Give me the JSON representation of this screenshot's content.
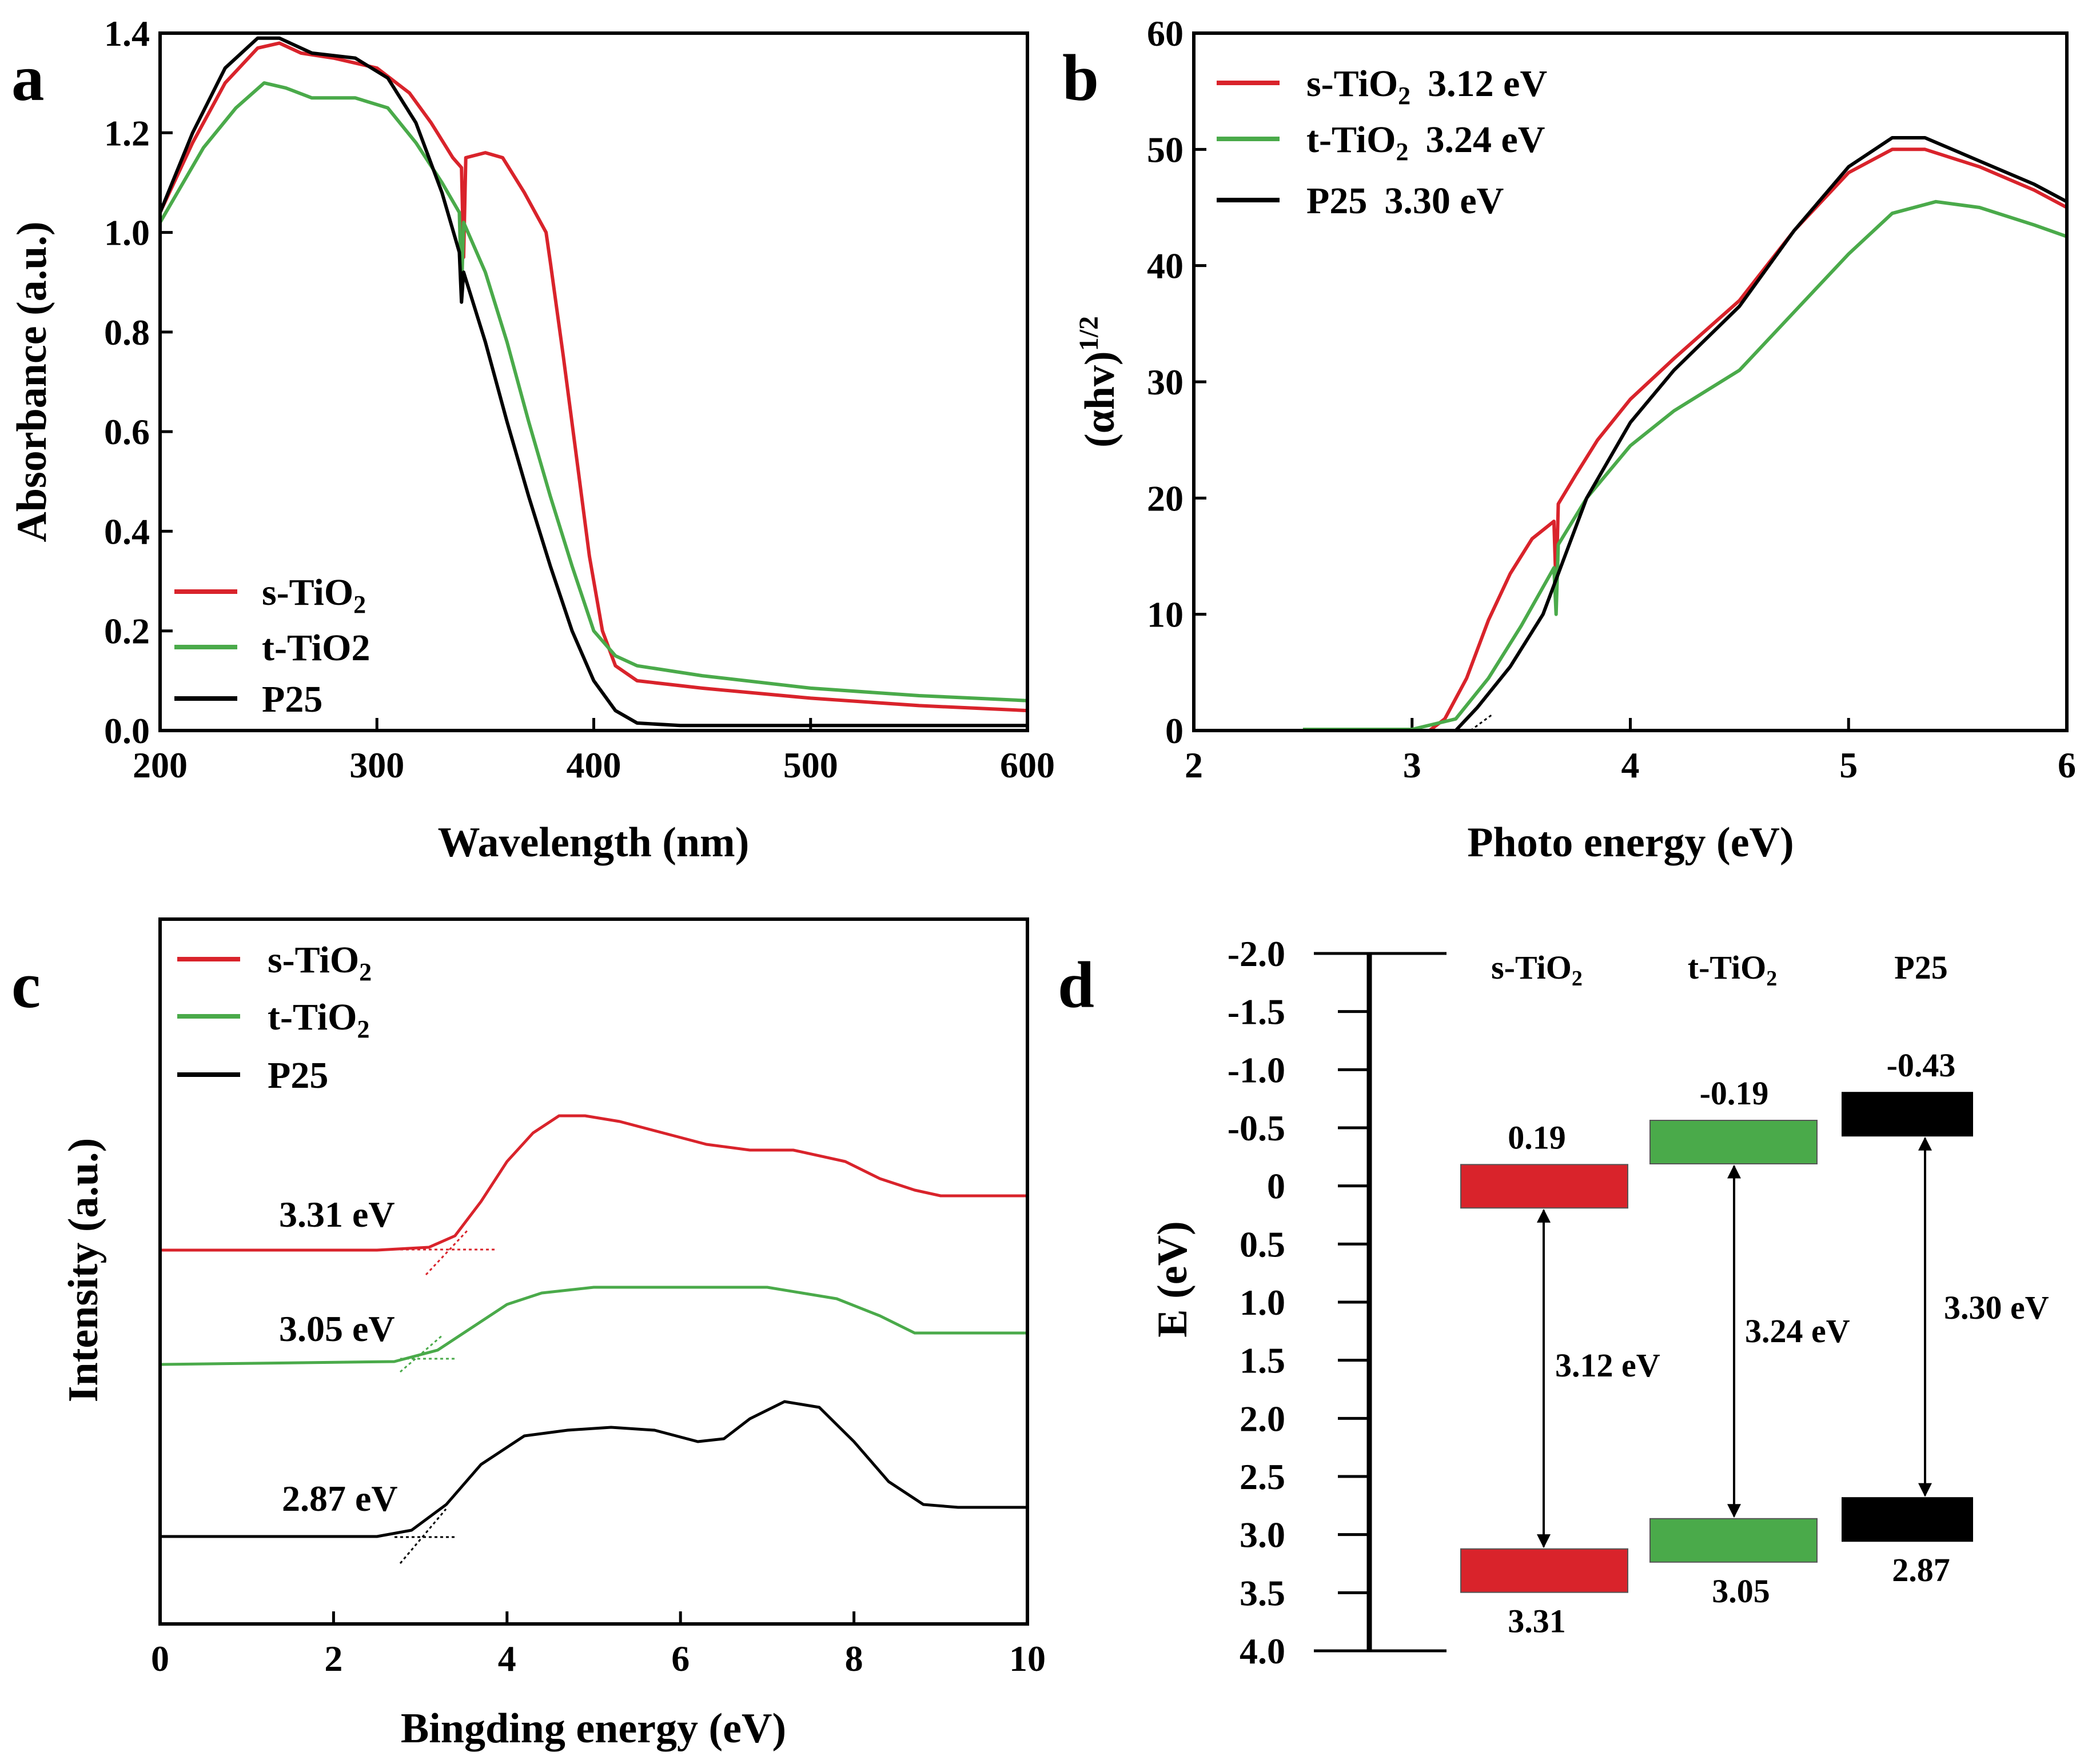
{
  "figure": {
    "colors": {
      "s": "#d9232b",
      "t": "#4aaa4a",
      "p25": "#000000"
    }
  },
  "chart_data": [
    {
      "id": "a",
      "panel_letter": "a",
      "type": "line",
      "xlabel": "Wavelength (nm)",
      "ylabel": "Absorbance (a.u.)",
      "xlim": [
        200,
        600
      ],
      "ylim": [
        0,
        1.4
      ],
      "xticks": [
        "200",
        "300",
        "400",
        "500",
        "600"
      ],
      "yticks": [
        "0.0",
        "0.2",
        "0.4",
        "0.6",
        "0.8",
        "1.0",
        "1.2",
        "1.4"
      ],
      "legend_position": "lower-left",
      "series": [
        {
          "name": "s-TiO",
          "sub": "2",
          "color": "#d9232b",
          "points": [
            [
              200,
              1.04
            ],
            [
              215,
              1.18
            ],
            [
              230,
              1.3
            ],
            [
              245,
              1.37
            ],
            [
              255,
              1.38
            ],
            [
              265,
              1.36
            ],
            [
              280,
              1.35
            ],
            [
              300,
              1.33
            ],
            [
              315,
              1.28
            ],
            [
              325,
              1.22
            ],
            [
              335,
              1.15
            ],
            [
              339,
              1.13
            ],
            [
              340,
              0.95
            ],
            [
              341,
              1.15
            ],
            [
              350,
              1.16
            ],
            [
              358,
              1.15
            ],
            [
              368,
              1.08
            ],
            [
              378,
              1.0
            ],
            [
              380,
              0.94
            ],
            [
              386,
              0.75
            ],
            [
              392,
              0.55
            ],
            [
              398,
              0.35
            ],
            [
              404,
              0.2
            ],
            [
              410,
              0.13
            ],
            [
              420,
              0.1
            ],
            [
              450,
              0.085
            ],
            [
              500,
              0.065
            ],
            [
              550,
              0.05
            ],
            [
              600,
              0.04
            ]
          ]
        },
        {
          "name": "t-TiO2",
          "sub": "",
          "color": "#4aaa4a",
          "points": [
            [
              200,
              1.02
            ],
            [
              220,
              1.17
            ],
            [
              235,
              1.25
            ],
            [
              248,
              1.3
            ],
            [
              258,
              1.29
            ],
            [
              270,
              1.27
            ],
            [
              290,
              1.27
            ],
            [
              305,
              1.25
            ],
            [
              318,
              1.18
            ],
            [
              330,
              1.1
            ],
            [
              338,
              1.04
            ],
            [
              339,
              0.88
            ],
            [
              340,
              1.02
            ],
            [
              350,
              0.92
            ],
            [
              360,
              0.78
            ],
            [
              370,
              0.62
            ],
            [
              380,
              0.47
            ],
            [
              390,
              0.33
            ],
            [
              400,
              0.2
            ],
            [
              410,
              0.15
            ],
            [
              420,
              0.13
            ],
            [
              450,
              0.11
            ],
            [
              500,
              0.085
            ],
            [
              550,
              0.07
            ],
            [
              600,
              0.06
            ]
          ]
        },
        {
          "name": "P25",
          "sub": "",
          "color": "#000000",
          "points": [
            [
              200,
              1.04
            ],
            [
              215,
              1.2
            ],
            [
              230,
              1.33
            ],
            [
              245,
              1.39
            ],
            [
              255,
              1.39
            ],
            [
              270,
              1.36
            ],
            [
              290,
              1.35
            ],
            [
              305,
              1.31
            ],
            [
              318,
              1.22
            ],
            [
              330,
              1.08
            ],
            [
              338,
              0.96
            ],
            [
              339,
              0.86
            ],
            [
              340,
              0.92
            ],
            [
              350,
              0.78
            ],
            [
              360,
              0.62
            ],
            [
              370,
              0.47
            ],
            [
              380,
              0.33
            ],
            [
              390,
              0.2
            ],
            [
              400,
              0.1
            ],
            [
              410,
              0.04
            ],
            [
              420,
              0.015
            ],
            [
              440,
              0.01
            ],
            [
              500,
              0.01
            ],
            [
              600,
              0.01
            ]
          ]
        }
      ]
    },
    {
      "id": "b",
      "panel_letter": "b",
      "type": "line",
      "xlabel": "Photo energy (eV)",
      "ylabel": "(αhv)",
      "ylabel_sup": "1/2",
      "xlim": [
        2,
        6
      ],
      "ylim": [
        0,
        60
      ],
      "xticks": [
        "2",
        "3",
        "4",
        "5",
        "6"
      ],
      "yticks": [
        "0",
        "10",
        "20",
        "30",
        "40",
        "50",
        "60"
      ],
      "legend_position": "top-left",
      "series": [
        {
          "name": "s-TiO",
          "sub": "2",
          "gap": "3.12 eV",
          "color": "#d9232b",
          "points": [
            [
              3.08,
              0
            ],
            [
              3.15,
              1.0
            ],
            [
              3.25,
              4.5
            ],
            [
              3.35,
              9.5
            ],
            [
              3.45,
              13.5
            ],
            [
              3.55,
              16.5
            ],
            [
              3.65,
              18
            ],
            [
              3.66,
              12
            ],
            [
              3.67,
              19.5
            ],
            [
              3.75,
              22
            ],
            [
              3.85,
              25
            ],
            [
              4.0,
              28.5
            ],
            [
              4.2,
              32
            ],
            [
              4.5,
              37
            ],
            [
              4.75,
              43
            ],
            [
              5.0,
              48
            ],
            [
              5.2,
              50
            ],
            [
              5.35,
              50
            ],
            [
              5.6,
              48.5
            ],
            [
              5.85,
              46.5
            ],
            [
              6.0,
              45
            ]
          ]
        },
        {
          "name": "t-TiO",
          "sub": "2",
          "gap": "3.24 eV",
          "color": "#4aaa4a",
          "points": [
            [
              2.5,
              0.1
            ],
            [
              3.0,
              0.1
            ],
            [
              3.2,
              1.0
            ],
            [
              3.35,
              4.5
            ],
            [
              3.5,
              9
            ],
            [
              3.65,
              14
            ],
            [
              3.66,
              10
            ],
            [
              3.67,
              16
            ],
            [
              3.8,
              20
            ],
            [
              4.0,
              24.5
            ],
            [
              4.2,
              27.5
            ],
            [
              4.5,
              31
            ],
            [
              4.75,
              36
            ],
            [
              5.0,
              41
            ],
            [
              5.2,
              44.5
            ],
            [
              5.4,
              45.5
            ],
            [
              5.6,
              45
            ],
            [
              5.85,
              43.5
            ],
            [
              6.0,
              42.5
            ]
          ]
        },
        {
          "name": "P25",
          "sub": "",
          "gap": "3.30 eV",
          "color": "#000000",
          "points": [
            [
              3.2,
              0
            ],
            [
              3.3,
              2
            ],
            [
              3.45,
              5.5
            ],
            [
              3.6,
              10
            ],
            [
              3.7,
              15
            ],
            [
              3.8,
              20
            ],
            [
              4.0,
              26.5
            ],
            [
              4.2,
              31
            ],
            [
              4.5,
              36.5
            ],
            [
              4.75,
              43
            ],
            [
              5.0,
              48.5
            ],
            [
              5.2,
              51
            ],
            [
              5.35,
              51
            ],
            [
              5.6,
              49
            ],
            [
              5.85,
              47
            ],
            [
              6.0,
              45.5
            ]
          ]
        }
      ]
    },
    {
      "id": "c",
      "panel_letter": "c",
      "type": "line",
      "xlabel": "Bingding energy (eV)",
      "ylabel": "Intensity (a.u.)",
      "xlim": [
        0,
        10
      ],
      "ylim": [
        0,
        1
      ],
      "xticks": [
        "0",
        "2",
        "4",
        "6",
        "8",
        "10"
      ],
      "legend_position": "top-left",
      "series": [
        {
          "name": "s-TiO",
          "sub": "2",
          "edge": "3.31 eV",
          "color": "#d9232b",
          "points": [
            [
              0,
              0.535
            ],
            [
              2.5,
              0.535
            ],
            [
              3.1,
              0.54
            ],
            [
              3.4,
              0.56
            ],
            [
              3.7,
              0.62
            ],
            [
              4.0,
              0.69
            ],
            [
              4.3,
              0.74
            ],
            [
              4.6,
              0.77
            ],
            [
              4.9,
              0.77
            ],
            [
              5.3,
              0.76
            ],
            [
              5.8,
              0.74
            ],
            [
              6.3,
              0.72
            ],
            [
              6.8,
              0.71
            ],
            [
              7.3,
              0.71
            ],
            [
              7.9,
              0.69
            ],
            [
              8.3,
              0.66
            ],
            [
              8.7,
              0.64
            ],
            [
              9.0,
              0.63
            ],
            [
              9.5,
              0.63
            ],
            [
              10,
              0.63
            ]
          ]
        },
        {
          "name": "t-TiO",
          "sub": "2",
          "edge": "3.05 eV",
          "color": "#4aaa4a",
          "points": [
            [
              0,
              0.335
            ],
            [
              2.7,
              0.34
            ],
            [
              3.2,
              0.36
            ],
            [
              3.6,
              0.4
            ],
            [
              4.0,
              0.44
            ],
            [
              4.4,
              0.46
            ],
            [
              5.0,
              0.47
            ],
            [
              6.0,
              0.47
            ],
            [
              7.0,
              0.47
            ],
            [
              7.8,
              0.45
            ],
            [
              8.3,
              0.42
            ],
            [
              8.7,
              0.39
            ],
            [
              9.2,
              0.39
            ],
            [
              10,
              0.39
            ]
          ]
        },
        {
          "name": "P25",
          "sub": "",
          "edge": "2.87 eV",
          "color": "#000000",
          "points": [
            [
              0,
              0.034
            ],
            [
              2.5,
              0.034
            ],
            [
              2.9,
              0.045
            ],
            [
              3.3,
              0.09
            ],
            [
              3.7,
              0.16
            ],
            [
              4.2,
              0.21
            ],
            [
              4.7,
              0.22
            ],
            [
              5.2,
              0.225
            ],
            [
              5.7,
              0.22
            ],
            [
              6.2,
              0.2
            ],
            [
              6.5,
              0.205
            ],
            [
              6.8,
              0.24
            ],
            [
              7.2,
              0.27
            ],
            [
              7.6,
              0.26
            ],
            [
              8.0,
              0.2
            ],
            [
              8.4,
              0.13
            ],
            [
              8.8,
              0.09
            ],
            [
              9.2,
              0.085
            ],
            [
              10,
              0.085
            ]
          ]
        }
      ]
    },
    {
      "id": "d",
      "panel_letter": "d",
      "type": "band-diagram",
      "ylabel": "E (eV)",
      "ylim": [
        -2.0,
        4.0
      ],
      "yticks": [
        "-2.0",
        "-1.5",
        "-1.0",
        "-0.5",
        "0",
        "0.5",
        "1.0",
        "1.5",
        "2.0",
        "2.5",
        "3.0",
        "3.5",
        "4.0"
      ],
      "materials": [
        {
          "name": "s-TiO",
          "sub": "2",
          "color": "#d9232b",
          "cb": 0.19,
          "vb": 3.31,
          "cb_label": "0.19",
          "vb_label": "3.31",
          "gap_label": "3.12 eV"
        },
        {
          "name": "t-TiO",
          "sub": "2",
          "color": "#4aaa4a",
          "cb": -0.19,
          "vb": 3.05,
          "cb_label": "-0.19",
          "vb_label": "3.05",
          "gap_label": "3.24 eV"
        },
        {
          "name": "P25",
          "sub": "",
          "color": "#000000",
          "cb": -0.43,
          "vb": 2.87,
          "cb_label": "-0.43",
          "vb_label": "2.87",
          "gap_label": "3.30 eV"
        }
      ]
    }
  ]
}
